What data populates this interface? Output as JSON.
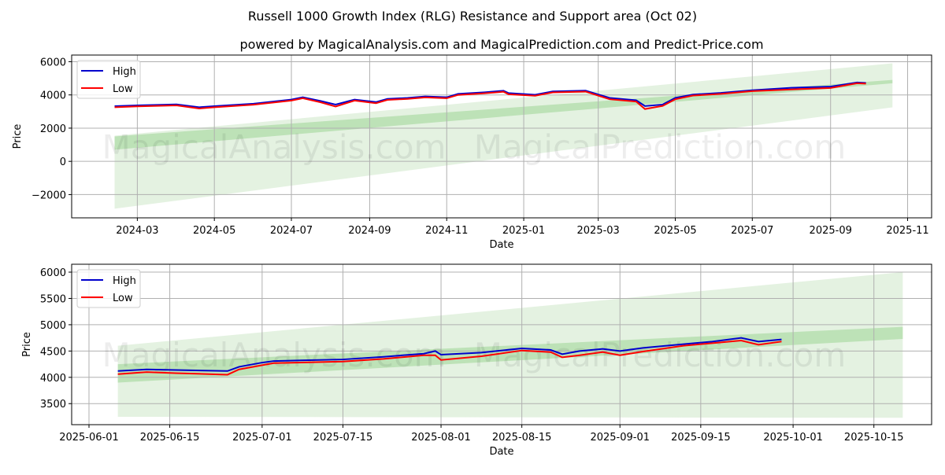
{
  "chart_data": [
    {
      "type": "line",
      "title": "Russell 1000 Growth Index (RLG) Resistance and Support area (Oct 02)",
      "subtitle": "powered by MagicalAnalysis.com and MagicalPrediction.com and Predict-Price.com",
      "xlabel": "Date",
      "ylabel": "Price",
      "xlim": [
        "2024-01-09",
        "2025-11-20"
      ],
      "ylim": [
        -3400,
        6400
      ],
      "yticks": [
        6000,
        4000,
        2000,
        0,
        -2000
      ],
      "ytick_labels": [
        "6000",
        "4000",
        "2000",
        "0",
        "−2000"
      ],
      "xticks": [
        "2024-03-01",
        "2024-05-01",
        "2024-07-01",
        "2024-09-01",
        "2024-11-01",
        "2025-01-01",
        "2025-03-01",
        "2025-05-01",
        "2025-07-01",
        "2025-09-01",
        "2025-11-01"
      ],
      "xtick_labels": [
        "2024-03",
        "2024-05",
        "2024-07",
        "2024-09",
        "2024-11",
        "2025-01",
        "2025-03",
        "2025-05",
        "2025-07",
        "2025-09",
        "2025-11"
      ],
      "legend": [
        "High",
        "Low"
      ],
      "legend_position": "top-left",
      "grid": true,
      "bands": [
        {
          "x": [
            "2024-02-12",
            "2025-10-20"
          ],
          "lower": [
            -2850,
            3250
          ],
          "upper": [
            1550,
            5900
          ],
          "shade": "light"
        },
        {
          "x": [
            "2024-02-12",
            "2025-10-20"
          ],
          "lower": [
            700,
            4700
          ],
          "upper": [
            1500,
            4900
          ],
          "shade": "dark"
        }
      ],
      "series": [
        {
          "name": "High",
          "color": "#0000cc",
          "points": [
            [
              "2024-02-12",
              3320
            ],
            [
              "2024-03-01",
              3370
            ],
            [
              "2024-04-01",
              3430
            ],
            [
              "2024-04-19",
              3260
            ],
            [
              "2024-05-01",
              3320
            ],
            [
              "2024-06-01",
              3470
            ],
            [
              "2024-07-01",
              3720
            ],
            [
              "2024-07-10",
              3860
            ],
            [
              "2024-07-24",
              3640
            ],
            [
              "2024-08-05",
              3420
            ],
            [
              "2024-08-20",
              3720
            ],
            [
              "2024-09-06",
              3570
            ],
            [
              "2024-09-15",
              3760
            ],
            [
              "2024-10-01",
              3820
            ],
            [
              "2024-10-15",
              3910
            ],
            [
              "2024-11-01",
              3860
            ],
            [
              "2024-11-10",
              4060
            ],
            [
              "2024-12-01",
              4160
            ],
            [
              "2024-12-16",
              4250
            ],
            [
              "2024-12-20",
              4110
            ],
            [
              "2025-01-10",
              4010
            ],
            [
              "2025-01-24",
              4210
            ],
            [
              "2025-02-19",
              4260
            ],
            [
              "2025-03-10",
              3820
            ],
            [
              "2025-03-31",
              3680
            ],
            [
              "2025-04-07",
              3330
            ],
            [
              "2025-04-21",
              3420
            ],
            [
              "2025-05-01",
              3820
            ],
            [
              "2025-05-15",
              4020
            ],
            [
              "2025-06-06",
              4120
            ],
            [
              "2025-07-01",
              4280
            ],
            [
              "2025-08-01",
              4430
            ],
            [
              "2025-09-01",
              4500
            ],
            [
              "2025-09-22",
              4750
            ],
            [
              "2025-09-29",
              4720
            ]
          ]
        },
        {
          "name": "Low",
          "color": "#ff0000",
          "points": [
            [
              "2024-02-12",
              3260
            ],
            [
              "2024-03-01",
              3310
            ],
            [
              "2024-04-01",
              3370
            ],
            [
              "2024-04-19",
              3180
            ],
            [
              "2024-05-01",
              3260
            ],
            [
              "2024-06-01",
              3410
            ],
            [
              "2024-07-01",
              3660
            ],
            [
              "2024-07-10",
              3800
            ],
            [
              "2024-07-24",
              3560
            ],
            [
              "2024-08-05",
              3300
            ],
            [
              "2024-08-20",
              3660
            ],
            [
              "2024-09-06",
              3500
            ],
            [
              "2024-09-15",
              3700
            ],
            [
              "2024-10-01",
              3760
            ],
            [
              "2024-10-15",
              3850
            ],
            [
              "2024-11-01",
              3800
            ],
            [
              "2024-11-10",
              4000
            ],
            [
              "2024-12-01",
              4100
            ],
            [
              "2024-12-16",
              4190
            ],
            [
              "2024-12-20",
              4040
            ],
            [
              "2025-01-10",
              3950
            ],
            [
              "2025-01-24",
              4150
            ],
            [
              "2025-02-19",
              4200
            ],
            [
              "2025-03-10",
              3740
            ],
            [
              "2025-03-31",
              3600
            ],
            [
              "2025-04-07",
              3150
            ],
            [
              "2025-04-21",
              3340
            ],
            [
              "2025-05-01",
              3740
            ],
            [
              "2025-05-15",
              3960
            ],
            [
              "2025-06-06",
              4060
            ],
            [
              "2025-07-01",
              4230
            ],
            [
              "2025-08-01",
              4330
            ],
            [
              "2025-09-01",
              4420
            ],
            [
              "2025-09-22",
              4700
            ],
            [
              "2025-09-29",
              4680
            ]
          ]
        }
      ]
    },
    {
      "type": "line",
      "title": "",
      "xlabel": "Date",
      "ylabel": "Price",
      "xlim": [
        "2025-05-29",
        "2025-10-25"
      ],
      "ylim": [
        3100,
        6150
      ],
      "yticks": [
        6000,
        5500,
        5000,
        4500,
        4000,
        3500
      ],
      "ytick_labels": [
        "6000",
        "5500",
        "5000",
        "4500",
        "4000",
        "3500"
      ],
      "xticks": [
        "2025-06-01",
        "2025-06-15",
        "2025-07-01",
        "2025-07-15",
        "2025-08-01",
        "2025-08-15",
        "2025-09-01",
        "2025-09-15",
        "2025-10-01",
        "2025-10-15"
      ],
      "xtick_labels": [
        "2025-06-01",
        "2025-06-15",
        "2025-07-01",
        "2025-07-15",
        "2025-08-01",
        "2025-08-15",
        "2025-09-01",
        "2025-09-15",
        "2025-10-01",
        "2025-10-15"
      ],
      "legend": [
        "High",
        "Low"
      ],
      "legend_position": "top-left",
      "grid": true,
      "bands": [
        {
          "x": [
            "2025-06-06",
            "2025-10-20"
          ],
          "lower": [
            3250,
            3230
          ],
          "upper": [
            4600,
            6000
          ],
          "shade": "light"
        },
        {
          "x": [
            "2025-06-06",
            "2025-10-20"
          ],
          "lower": [
            3900,
            4730
          ],
          "upper": [
            4250,
            4960
          ],
          "shade": "dark"
        }
      ],
      "series": [
        {
          "name": "High",
          "color": "#0000cc",
          "points": [
            [
              "2025-06-06",
              4120
            ],
            [
              "2025-06-11",
              4150
            ],
            [
              "2025-06-16",
              4140
            ],
            [
              "2025-06-25",
              4120
            ],
            [
              "2025-06-27",
              4200
            ],
            [
              "2025-07-01",
              4280
            ],
            [
              "2025-07-03",
              4310
            ],
            [
              "2025-07-15",
              4340
            ],
            [
              "2025-07-22",
              4390
            ],
            [
              "2025-07-29",
              4450
            ],
            [
              "2025-07-31",
              4500
            ],
            [
              "2025-08-01",
              4430
            ],
            [
              "2025-08-08",
              4470
            ],
            [
              "2025-08-15",
              4550
            ],
            [
              "2025-08-20",
              4520
            ],
            [
              "2025-08-22",
              4440
            ],
            [
              "2025-08-25",
              4500
            ],
            [
              "2025-08-29",
              4540
            ],
            [
              "2025-09-01",
              4500
            ],
            [
              "2025-09-05",
              4560
            ],
            [
              "2025-09-12",
              4630
            ],
            [
              "2025-09-17",
              4680
            ],
            [
              "2025-09-22",
              4750
            ],
            [
              "2025-09-25",
              4680
            ],
            [
              "2025-09-29",
              4720
            ]
          ]
        },
        {
          "name": "Low",
          "color": "#ff0000",
          "points": [
            [
              "2025-06-06",
              4060
            ],
            [
              "2025-06-11",
              4100
            ],
            [
              "2025-06-16",
              4080
            ],
            [
              "2025-06-25",
              4050
            ],
            [
              "2025-06-27",
              4150
            ],
            [
              "2025-07-01",
              4230
            ],
            [
              "2025-07-03",
              4270
            ],
            [
              "2025-07-15",
              4300
            ],
            [
              "2025-07-22",
              4350
            ],
            [
              "2025-07-29",
              4420
            ],
            [
              "2025-07-31",
              4420
            ],
            [
              "2025-08-01",
              4330
            ],
            [
              "2025-08-08",
              4400
            ],
            [
              "2025-08-15",
              4510
            ],
            [
              "2025-08-20",
              4480
            ],
            [
              "2025-08-22",
              4380
            ],
            [
              "2025-08-25",
              4420
            ],
            [
              "2025-08-29",
              4480
            ],
            [
              "2025-09-01",
              4420
            ],
            [
              "2025-09-05",
              4490
            ],
            [
              "2025-09-12",
              4600
            ],
            [
              "2025-09-17",
              4650
            ],
            [
              "2025-09-22",
              4700
            ],
            [
              "2025-09-25",
              4620
            ],
            [
              "2025-09-29",
              4680
            ]
          ]
        }
      ]
    }
  ],
  "watermarks": [
    "MagicalAnalysis.com",
    "MagicalPrediction.com"
  ]
}
